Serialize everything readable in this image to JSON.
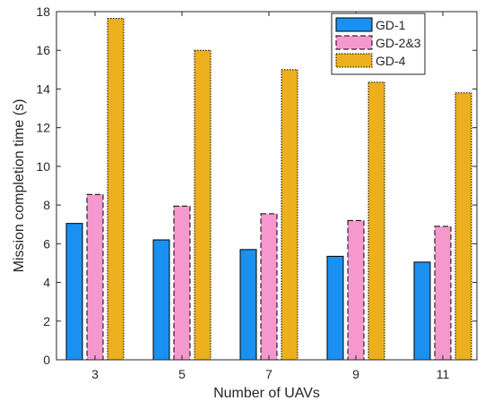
{
  "chart_data": {
    "type": "bar",
    "title": "",
    "xlabel": "Number of UAVs",
    "ylabel": "Mission completion time (s)",
    "categories": [
      "3",
      "5",
      "7",
      "9",
      "11"
    ],
    "ylim": [
      0,
      18
    ],
    "yticks": [
      0,
      2,
      4,
      6,
      8,
      10,
      12,
      14,
      16,
      18
    ],
    "grid": false,
    "legend_position": "top-right",
    "series": [
      {
        "name": "GD-1",
        "values": [
          7.05,
          6.2,
          5.7,
          5.35,
          5.05
        ],
        "color": "#1a90f0",
        "border": "solid"
      },
      {
        "name": "GD-2&3",
        "values": [
          8.55,
          7.95,
          7.55,
          7.2,
          6.9
        ],
        "color": "#f598cd",
        "border": "dashed"
      },
      {
        "name": "GD-4",
        "values": [
          17.65,
          16.0,
          15.0,
          14.35,
          13.8
        ],
        "color": "#ecb01f",
        "border": "dotted"
      }
    ]
  }
}
